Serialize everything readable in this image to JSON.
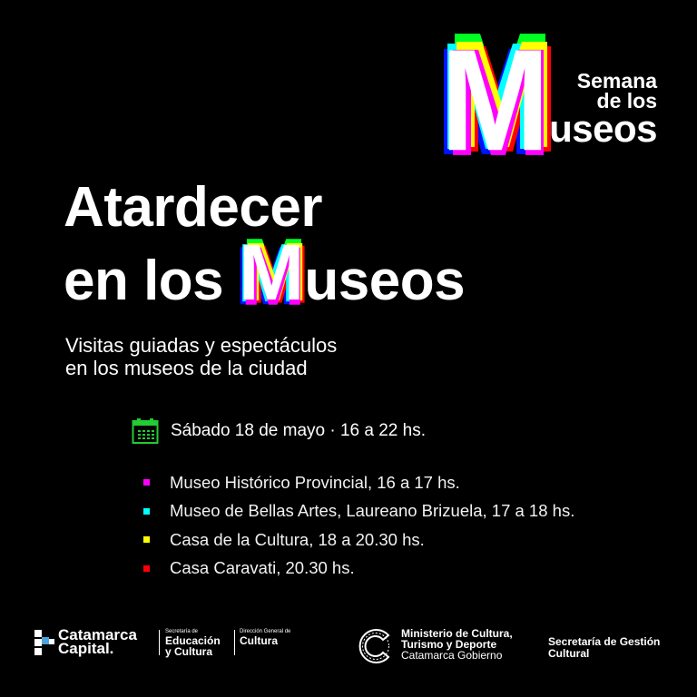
{
  "logo": {
    "letter": "M",
    "line1": "Semana",
    "line2": "de los",
    "line3": "useos"
  },
  "glitch_colors": [
    "#0011ff",
    "#00ff22",
    "#ff0000",
    "#00ffff",
    "#ffff00",
    "#ff00ff",
    "#ffffff"
  ],
  "title": {
    "line1": "Atardecer",
    "line2_prefix": "en los ",
    "line2_letter": "M",
    "line2_suffix": "useos"
  },
  "subtitle": {
    "line1": "Visitas guiadas y espectáculos",
    "line2": "en los museos de la ciudad"
  },
  "event": {
    "icon": "calendar-icon",
    "icon_color": "#22cc33",
    "date": "Sábado 18 de mayo · 16 a 22 hs."
  },
  "venues": [
    {
      "label": "Museo Histórico Provincial, 16 a 17 hs.",
      "color": "#ff00ff"
    },
    {
      "label": "Museo de Bellas Artes, Laureano Brizuela, 17 a 18 hs.",
      "color": "#00ffff"
    },
    {
      "label": "Casa de la Cultura, 18 a 20.30 hs.",
      "color": "#ffff00"
    },
    {
      "label": "Casa Caravati, 20.30 hs.",
      "color": "#ff0000"
    }
  ],
  "footer": {
    "capital": {
      "line1": "Catamarca",
      "line2": "Capital."
    },
    "educacion": {
      "small": "Secretaría de",
      "line1": "Educación",
      "line2": "y Cultura"
    },
    "direccion": {
      "small": "Dirección General de",
      "line1": "Cultura"
    },
    "ministerio": {
      "line1": "Ministerio de Cultura,",
      "line2": "Turismo y Deporte",
      "line3": "Catamarca Gobierno"
    },
    "secretaria": {
      "line1": "Secretaría de Gestión",
      "line2": "Cultural"
    }
  }
}
